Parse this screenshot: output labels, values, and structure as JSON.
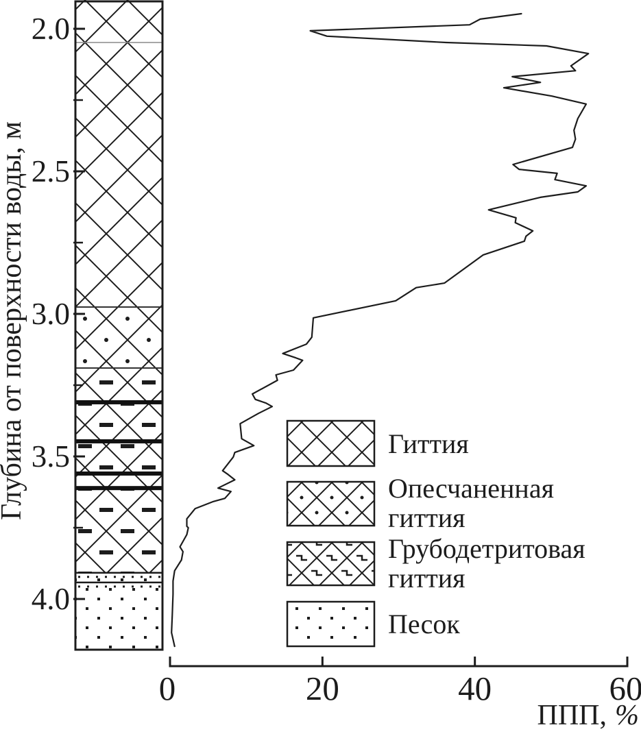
{
  "figure": {
    "y_axis": {
      "title": "Глубина от поверхности воды, м",
      "tick_labels": [
        "2.0",
        "2.5",
        "3.0",
        "3.5",
        "4.0"
      ],
      "tick_values_m": [
        2.0,
        2.5,
        3.0,
        3.5,
        4.0
      ],
      "minor_tick_values_m": [
        2.25,
        2.75,
        3.25,
        3.75
      ]
    },
    "x_axis": {
      "title_main": "ППП,",
      "title_unit": "%",
      "tick_labels": [
        "0",
        "20",
        "40",
        "60"
      ],
      "tick_values_pct": [
        0,
        20,
        40,
        60
      ]
    },
    "legend": {
      "items": [
        {
          "pattern": "crosshatch",
          "lines": [
            "Гиттия",
            ""
          ]
        },
        {
          "pattern": "crosshatch-dots",
          "lines": [
            "Опесчаненная",
            "гиттия"
          ]
        },
        {
          "pattern": "crosshatch-hooks",
          "lines": [
            "Грубодетритовая",
            "гиттия"
          ]
        },
        {
          "pattern": "dots",
          "lines": [
            "Песок",
            ""
          ]
        }
      ]
    },
    "colors": {
      "ink": "#1c1c1c",
      "background": "#ffffff"
    }
  },
  "chart_data": {
    "type": "line",
    "title": "",
    "xlabel": "ППП, %",
    "ylabel": "Глубина от поверхности воды, м",
    "xlim": [
      0,
      60
    ],
    "depth_range_m": [
      1.9,
      4.18
    ],
    "x_ticks": [
      0,
      20,
      40,
      60
    ],
    "depth_ticks_m": [
      2.0,
      2.5,
      3.0,
      3.5,
      4.0
    ],
    "grid": false,
    "legend_position": "center-right",
    "series": [
      {
        "name": "ППП, %",
        "points_depth_value": [
          [
            1.947,
            46.1
          ],
          [
            1.966,
            40.7
          ],
          [
            1.986,
            39.3
          ],
          [
            2.007,
            18.4
          ],
          [
            2.026,
            20.6
          ],
          [
            2.048,
            36.2
          ],
          [
            2.06,
            49.4
          ],
          [
            2.087,
            54.9
          ],
          [
            2.13,
            52.6
          ],
          [
            2.147,
            53.2
          ],
          [
            2.168,
            44.9
          ],
          [
            2.188,
            48.6
          ],
          [
            2.207,
            43.8
          ],
          [
            2.236,
            50.1
          ],
          [
            2.264,
            54.6
          ],
          [
            2.315,
            53.5
          ],
          [
            2.356,
            53.0
          ],
          [
            2.387,
            53.2
          ],
          [
            2.416,
            52.8
          ],
          [
            2.476,
            45.0
          ],
          [
            2.493,
            45.8
          ],
          [
            2.507,
            50.8
          ],
          [
            2.529,
            50.5
          ],
          [
            2.551,
            54.6
          ],
          [
            2.572,
            53.5
          ],
          [
            2.591,
            48.6
          ],
          [
            2.635,
            41.8
          ],
          [
            2.663,
            45.4
          ],
          [
            2.68,
            45.3
          ],
          [
            2.709,
            47.6
          ],
          [
            2.728,
            46.7
          ],
          [
            2.745,
            46.5
          ],
          [
            2.793,
            41.1
          ],
          [
            2.892,
            36.0
          ],
          [
            2.908,
            32.3
          ],
          [
            2.954,
            29.6
          ],
          [
            3.014,
            18.8
          ],
          [
            3.082,
            18.6
          ],
          [
            3.106,
            17.9
          ],
          [
            3.139,
            14.8
          ],
          [
            3.154,
            16.5
          ],
          [
            3.163,
            17.4
          ],
          [
            3.197,
            16.2
          ],
          [
            3.214,
            13.9
          ],
          [
            3.233,
            14.1
          ],
          [
            3.281,
            10.8
          ],
          [
            3.3,
            11.2
          ],
          [
            3.313,
            12.6
          ],
          [
            3.325,
            13.4
          ],
          [
            3.349,
            11.6
          ],
          [
            3.385,
            9.2
          ],
          [
            3.438,
            9.4
          ],
          [
            3.462,
            11.0
          ],
          [
            3.486,
            8.5
          ],
          [
            3.502,
            8.3
          ],
          [
            3.55,
            6.9
          ],
          [
            3.563,
            7.6
          ],
          [
            3.582,
            8.5
          ],
          [
            3.611,
            6.3
          ],
          [
            3.623,
            8.0
          ],
          [
            3.647,
            7.2
          ],
          [
            3.659,
            5.6
          ],
          [
            3.683,
            3.3
          ],
          [
            3.719,
            2.2
          ],
          [
            3.745,
            2.2
          ],
          [
            3.75,
            2.4
          ],
          [
            3.774,
            2.2
          ],
          [
            3.817,
            1.3
          ],
          [
            3.834,
            1.7
          ],
          [
            3.863,
            1.5
          ],
          [
            3.901,
            0.6
          ],
          [
            3.937,
            0.4
          ],
          [
            3.983,
            0.4
          ],
          [
            4.055,
            0.3
          ],
          [
            4.118,
            0.2
          ],
          [
            4.154,
            0.5
          ],
          [
            4.166,
            0.6
          ]
        ]
      }
    ],
    "lithology_column": {
      "units": [
        {
          "from_m": 1.899,
          "to_m": 2.048,
          "lithology": "Гиттия"
        },
        {
          "from_m": 2.048,
          "to_m": 2.976,
          "lithology": "Гиттия"
        },
        {
          "from_m": 2.976,
          "to_m": 3.19,
          "lithology": "Опесчаненная гиттия"
        },
        {
          "from_m": 3.19,
          "to_m": 3.557,
          "lithology": "Грубодетритовая гиттия"
        },
        {
          "from_m": 3.557,
          "to_m": 3.608,
          "lithology": "Гиттия"
        },
        {
          "from_m": 3.608,
          "to_m": 3.908,
          "lithology": "Грубодетритовая гиттия"
        },
        {
          "from_m": 3.908,
          "to_m": 4.178,
          "lithology": "Песок"
        }
      ],
      "dark_band_depths_m": [
        3.31,
        3.447,
        3.56,
        3.611
      ],
      "sand_lamina_line_depths_m": [
        3.908,
        3.942
      ]
    }
  }
}
